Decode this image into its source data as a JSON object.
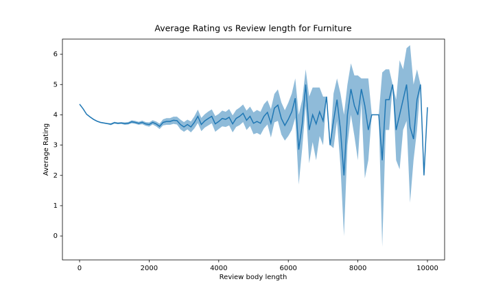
{
  "chart_data": {
    "type": "line",
    "title": "Average Rating vs Review length for Furniture",
    "xlabel": "Review body length",
    "ylabel": "Average Rating",
    "color": "#1f77b4",
    "band_opacity": 0.5,
    "xlim": [
      -493,
      10493
    ],
    "xticks": [
      0,
      2000,
      4000,
      6000,
      8000,
      10000
    ],
    "ylim": [
      -0.79,
      6.5
    ],
    "yticks": [
      0,
      1,
      2,
      3,
      4,
      5,
      6
    ],
    "x": [
      0,
      100,
      200,
      300,
      400,
      500,
      600,
      700,
      800,
      900,
      1000,
      1100,
      1200,
      1300,
      1400,
      1500,
      1600,
      1700,
      1800,
      1900,
      2000,
      2100,
      2200,
      2300,
      2400,
      2500,
      2600,
      2700,
      2800,
      2900,
      3000,
      3100,
      3200,
      3300,
      3400,
      3500,
      3600,
      3700,
      3800,
      3900,
      4000,
      4100,
      4200,
      4300,
      4400,
      4500,
      4600,
      4700,
      4800,
      4900,
      5000,
      5100,
      5200,
      5300,
      5400,
      5500,
      5600,
      5700,
      5800,
      5900,
      6000,
      6100,
      6200,
      6300,
      6400,
      6500,
      6600,
      6700,
      6800,
      6900,
      7000,
      7100,
      7200,
      7300,
      7400,
      7500,
      7600,
      7700,
      7800,
      7900,
      8000,
      8100,
      8200,
      8300,
      8400,
      8500,
      8600,
      8700,
      8800,
      8900,
      9000,
      9100,
      9200,
      9300,
      9400,
      9500,
      9600,
      9700,
      9800,
      9900,
      10000
    ],
    "values": [
      4.35,
      4.2,
      4.02,
      3.93,
      3.85,
      3.79,
      3.75,
      3.73,
      3.71,
      3.69,
      3.74,
      3.72,
      3.73,
      3.71,
      3.72,
      3.77,
      3.75,
      3.72,
      3.75,
      3.7,
      3.68,
      3.75,
      3.7,
      3.62,
      3.75,
      3.78,
      3.78,
      3.82,
      3.81,
      3.68,
      3.6,
      3.68,
      3.6,
      3.75,
      3.95,
      3.68,
      3.8,
      3.88,
      3.95,
      3.7,
      3.78,
      3.88,
      3.85,
      3.92,
      3.7,
      3.88,
      3.95,
      4.05,
      3.82,
      3.95,
      3.72,
      3.78,
      3.72,
      3.95,
      4.08,
      3.72,
      4.22,
      4.32,
      3.88,
      3.65,
      3.85,
      4.1,
      4.55,
      2.85,
      3.7,
      5.0,
      3.5,
      4.0,
      3.7,
      4.1,
      3.8,
      4.6,
      3.0,
      3.8,
      4.5,
      3.5,
      2.0,
      4.0,
      4.85,
      4.3,
      4.0,
      4.85,
      4.3,
      3.5,
      4.0,
      4.0,
      4.0,
      2.5,
      4.5,
      4.5,
      5.0,
      3.5,
      4.0,
      4.5,
      5.0,
      3.6,
      3.2,
      4.5,
      5.0,
      2.0,
      4.25
    ],
    "lower": [
      4.33,
      4.18,
      4.0,
      3.91,
      3.83,
      3.77,
      3.73,
      3.71,
      3.69,
      3.66,
      3.71,
      3.69,
      3.7,
      3.67,
      3.68,
      3.72,
      3.7,
      3.67,
      3.69,
      3.64,
      3.61,
      3.68,
      3.62,
      3.53,
      3.65,
      3.67,
      3.67,
      3.7,
      3.68,
      3.52,
      3.44,
      3.52,
      3.42,
      3.55,
      3.73,
      3.46,
      3.58,
      3.65,
      3.72,
      3.44,
      3.53,
      3.62,
      3.6,
      3.65,
      3.42,
      3.6,
      3.66,
      3.76,
      3.5,
      3.63,
      3.36,
      3.4,
      3.34,
      3.55,
      3.68,
      3.25,
      3.75,
      3.8,
      3.35,
      3.15,
      3.3,
      3.5,
      3.9,
      1.7,
      2.9,
      4.3,
      2.4,
      3.1,
      2.5,
      3.3,
      3.0,
      4.6,
      3.0,
      2.9,
      3.8,
      2.3,
      0.0,
      3.0,
      4.0,
      3.3,
      2.5,
      4.4,
      1.9,
      2.5,
      4.0,
      4.0,
      4.0,
      -0.35,
      3.5,
      3.5,
      5.0,
      2.5,
      2.2,
      3.5,
      3.8,
      1.1,
      2.5,
      3.5,
      5.0,
      2.0,
      4.25
    ],
    "upper": [
      4.37,
      4.22,
      4.04,
      3.95,
      3.87,
      3.81,
      3.77,
      3.75,
      3.73,
      3.72,
      3.77,
      3.75,
      3.76,
      3.75,
      3.76,
      3.82,
      3.8,
      3.77,
      3.81,
      3.76,
      3.75,
      3.82,
      3.78,
      3.71,
      3.85,
      3.89,
      3.89,
      3.94,
      3.94,
      3.84,
      3.76,
      3.84,
      3.78,
      3.95,
      4.17,
      3.9,
      4.02,
      4.11,
      4.18,
      3.96,
      4.03,
      4.14,
      4.1,
      4.19,
      3.98,
      4.16,
      4.24,
      4.34,
      4.14,
      4.27,
      4.08,
      4.16,
      4.1,
      4.35,
      4.48,
      4.19,
      4.69,
      4.84,
      4.41,
      4.15,
      4.4,
      4.7,
      5.2,
      4.0,
      4.5,
      5.5,
      4.6,
      4.9,
      4.9,
      4.9,
      4.6,
      4.6,
      3.0,
      4.7,
      5.2,
      4.7,
      4.0,
      5.0,
      5.7,
      5.3,
      5.3,
      5.2,
      5.2,
      5.2,
      4.0,
      4.0,
      4.0,
      5.4,
      5.5,
      5.5,
      5.0,
      4.5,
      5.8,
      5.5,
      6.2,
      6.3,
      5.0,
      5.5,
      5.0,
      2.0,
      4.25
    ]
  }
}
